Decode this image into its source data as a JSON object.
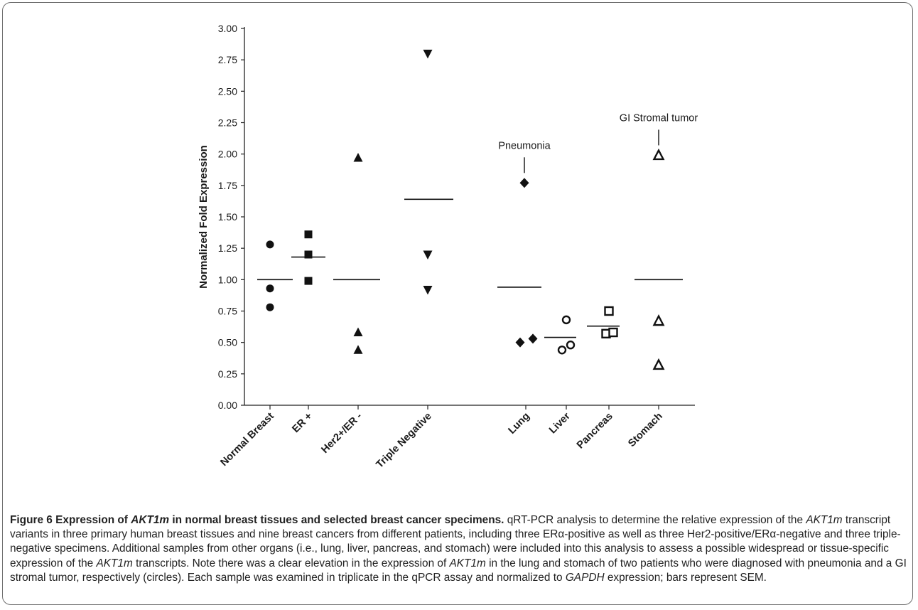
{
  "figure": {
    "number": "Figure 6",
    "title_parts": [
      "Expression of ",
      "AKT1m",
      " in normal breast tissues and selected breast cancer specimens."
    ],
    "body_parts": [
      {
        "t": " qRT-PCR analysis to determine the relative expression of the ",
        "i": false
      },
      {
        "t": "AKT1m",
        "i": true
      },
      {
        "t": " transcript variants in three primary human breast tissues and nine breast cancers from different patients, including three ERα-positive as well as three Her2-positive/ERα-negative and three triple-negative specimens. Additional samples from other organs (i.e., lung, liver, pancreas, and stomach) were included into this analysis to assess a possible widespread or tissue-specific expression of the ",
        "i": false
      },
      {
        "t": "AKT1m",
        "i": true
      },
      {
        "t": " transcripts. Note there was a clear elevation in the expression of ",
        "i": false
      },
      {
        "t": "AKT1m",
        "i": true
      },
      {
        "t": " in the lung and stomach of two patients who were diagnosed with pneumonia and a GI stromal tumor, respectively (circles). Each sample was examined in triplicate in the qPCR assay and normalized to ",
        "i": false
      },
      {
        "t": "GAPDH",
        "i": true
      },
      {
        "t": " expression; bars represent SEM.",
        "i": false
      }
    ]
  },
  "chart_data": {
    "type": "scatter",
    "ylabel": "Normalized Fold Expression",
    "ylim": [
      0,
      3
    ],
    "yticks": [
      "0.00",
      "0.25",
      "0.50",
      "0.75",
      "1.00",
      "1.25",
      "1.50",
      "1.75",
      "2.00",
      "2.25",
      "2.50",
      "2.75",
      "3.00"
    ],
    "categories": [
      "Normal Breast",
      "ER +",
      "Her2+/ER -",
      "Triple Negative",
      "Lung",
      "Liver",
      "Pancreas",
      "Stomach"
    ],
    "groups": [
      {
        "name": "Normal Breast",
        "marker": "circle",
        "values": [
          1.28,
          0.93,
          0.78
        ],
        "mean": 1.0
      },
      {
        "name": "ER +",
        "marker": "square",
        "values": [
          1.36,
          1.2,
          0.99
        ],
        "mean": 1.18
      },
      {
        "name": "Her2+/ER -",
        "marker": "triangle-up",
        "values": [
          1.97,
          0.58,
          0.44
        ],
        "mean": 1.0
      },
      {
        "name": "Triple Negative",
        "marker": "triangle-down",
        "values": [
          2.8,
          1.2,
          0.92
        ],
        "mean": 1.64
      },
      {
        "name": "Lung",
        "marker": "diamond",
        "values": [
          1.77,
          0.5,
          0.53
        ],
        "mean": 0.94
      },
      {
        "name": "Liver",
        "marker": "open-circle",
        "values": [
          0.68,
          0.44,
          0.48
        ],
        "mean": 0.54
      },
      {
        "name": "Pancreas",
        "marker": "open-square",
        "values": [
          0.75,
          0.57,
          0.58
        ],
        "mean": 0.63
      },
      {
        "name": "Stomach",
        "marker": "open-triangle",
        "values": [
          1.99,
          0.67,
          0.32
        ],
        "mean": 1.0
      }
    ],
    "annotations": [
      {
        "text": "Pneumonia",
        "group": "Lung",
        "value": 1.77
      },
      {
        "text": "GI Stromal tumor",
        "group": "Stomach",
        "value": 1.99
      }
    ]
  }
}
